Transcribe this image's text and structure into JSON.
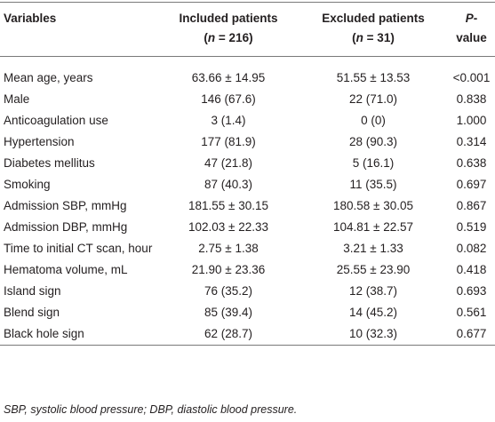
{
  "table": {
    "header": {
      "variables": "Variables",
      "included": [
        "Included patients"
      ],
      "included_n": [
        "(",
        "n",
        " = 216)"
      ],
      "excluded": [
        "Excluded patients"
      ],
      "excluded_n": [
        "(",
        "n",
        " = 31)"
      ],
      "p_value": [
        "P",
        "-value"
      ]
    },
    "rows": [
      [
        "Mean age, years",
        "63.66 ± 14.95",
        "51.55 ± 13.53",
        "<0.001"
      ],
      [
        "Male",
        "146 (67.6)",
        "22 (71.0)",
        "0.838"
      ],
      [
        "Anticoagulation use",
        "3 (1.4)",
        "0 (0)",
        "1.000"
      ],
      [
        "Hypertension",
        "177 (81.9)",
        "28 (90.3)",
        "0.314"
      ],
      [
        "Diabetes mellitus",
        "47 (21.8)",
        "5 (16.1)",
        "0.638"
      ],
      [
        "Smoking",
        "87 (40.3)",
        "11 (35.5)",
        "0.697"
      ],
      [
        "Admission SBP, mmHg",
        "181.55 ± 30.15",
        "180.58 ± 30.05",
        "0.867"
      ],
      [
        "Admission DBP, mmHg",
        "102.03 ± 22.33",
        "104.81 ± 22.57",
        "0.519"
      ],
      [
        "Time to initial CT scan, hour",
        "2.75 ± 1.38",
        "3.21 ± 1.33",
        "0.082"
      ],
      [
        "Hematoma volume, mL",
        "21.90 ± 23.36",
        "25.55 ± 23.90",
        "0.418"
      ],
      [
        "Island sign",
        "76 (35.2)",
        "12 (38.7)",
        "0.693"
      ],
      [
        "Blend sign",
        "85 (39.4)",
        "14 (45.2)",
        "0.561"
      ],
      [
        "Black hole sign",
        "62 (28.7)",
        "10 (32.3)",
        "0.677"
      ]
    ]
  },
  "footnote": "SBP, systolic blood pressure; DBP, diastolic blood pressure."
}
